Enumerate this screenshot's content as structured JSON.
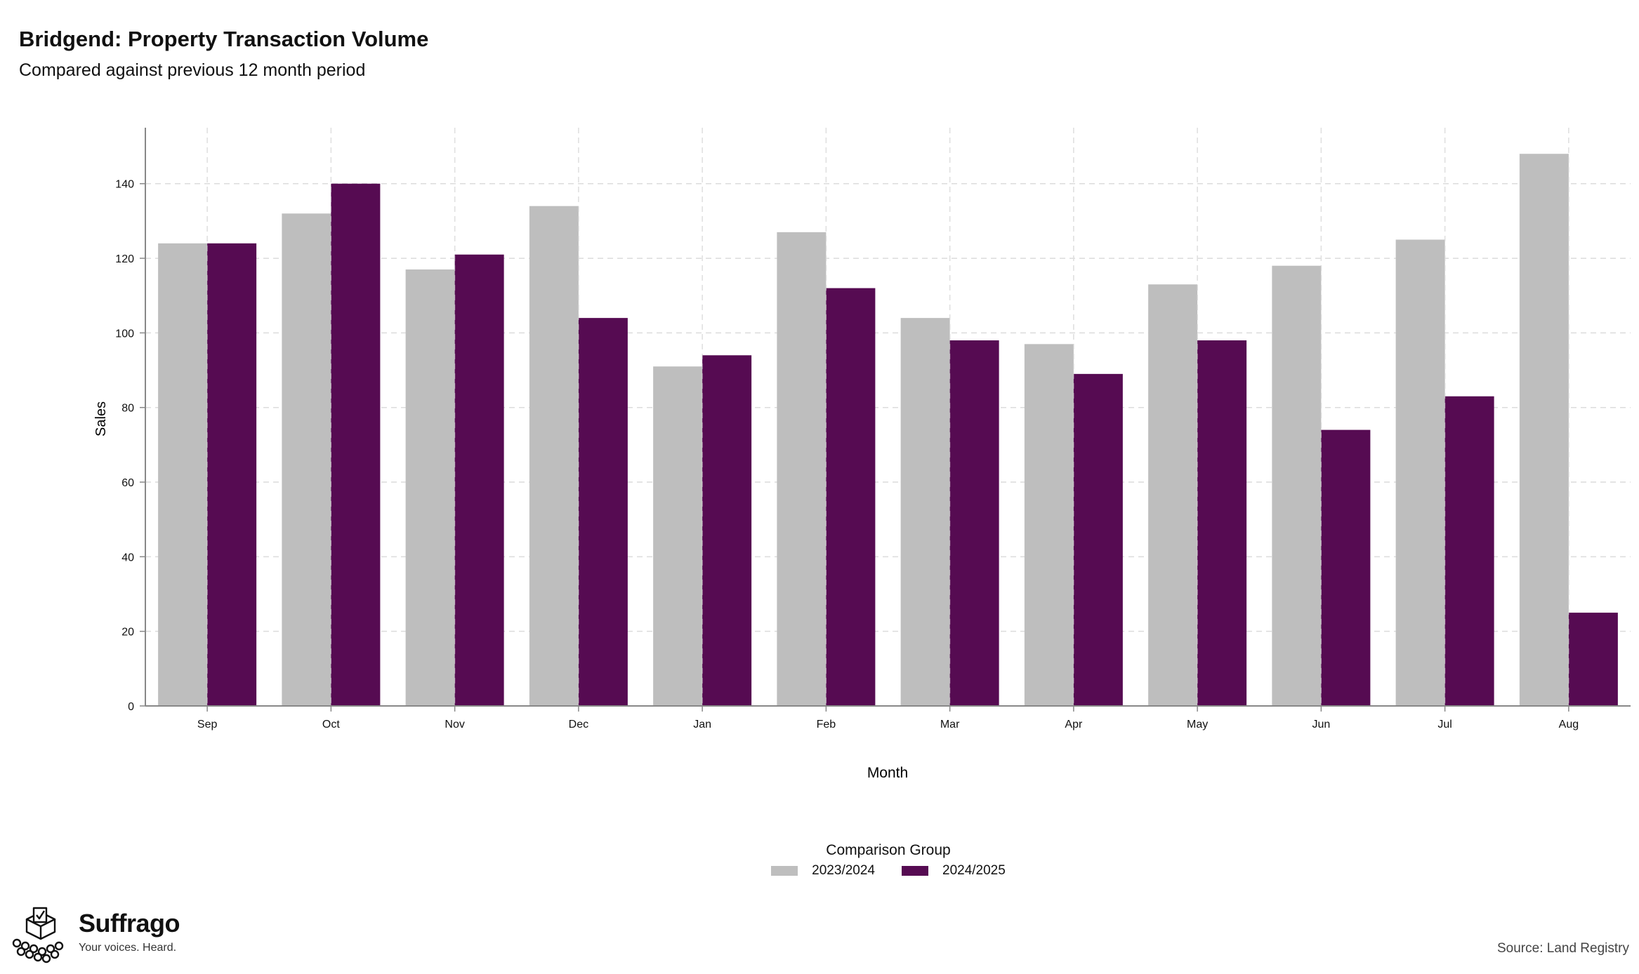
{
  "chart_data": {
    "type": "bar",
    "title": "Bridgend: Property Transaction Volume",
    "subtitle": "Compared against previous 12 month period",
    "xlabel": "Month",
    "ylabel": "Sales",
    "categories": [
      "Sep",
      "Oct",
      "Nov",
      "Dec",
      "Jan",
      "Feb",
      "Mar",
      "Apr",
      "May",
      "Jun",
      "Jul",
      "Aug"
    ],
    "series": [
      {
        "name": "2023/2024",
        "color": "#bebebe",
        "values": [
          124,
          132,
          117,
          134,
          91,
          127,
          104,
          97,
          113,
          118,
          125,
          148
        ]
      },
      {
        "name": "2024/2025",
        "color": "#560b52",
        "values": [
          124,
          140,
          121,
          104,
          94,
          112,
          98,
          89,
          98,
          74,
          83,
          25
        ]
      }
    ],
    "ylim": [
      0,
      155
    ],
    "yticks": [
      0,
      20,
      40,
      60,
      80,
      100,
      120,
      140
    ],
    "grid": true,
    "legend_title": "Comparison Group",
    "legend_position": "bottom"
  },
  "branding": {
    "name": "Suffrago",
    "tagline": "Your voices. Heard.",
    "icon": "ballot-box-icon"
  },
  "source": "Source: Land Registry"
}
